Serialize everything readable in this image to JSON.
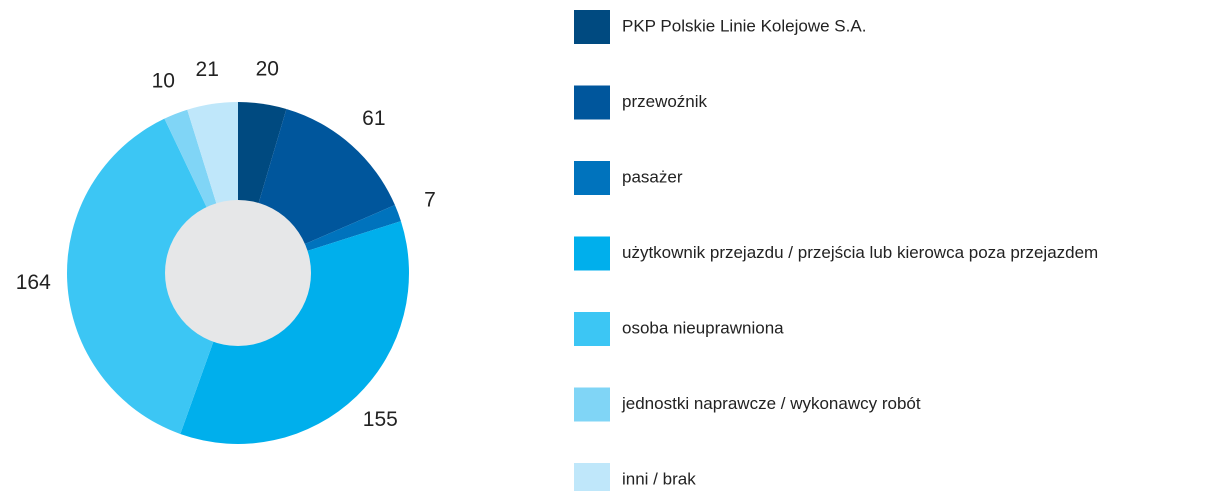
{
  "chart_data": {
    "type": "donut",
    "categories": [
      "PKP Polskie Linie Kolejowe S.A.",
      "przewoźnik",
      "pasażer",
      "użytkownik przejazdu / przejścia lub kierowca poza przejazdem",
      "osoba nieuprawniona",
      "jednostki naprawcze / wykonawcy robót",
      "inni / brak"
    ],
    "values": [
      20,
      61,
      7,
      155,
      164,
      10,
      21
    ],
    "colors": [
      "#004a80",
      "#00569c",
      "#0073bd",
      "#00afec",
      "#3cc6f4",
      "#80d5f6",
      "#bfe7fa"
    ],
    "legend": "right"
  }
}
